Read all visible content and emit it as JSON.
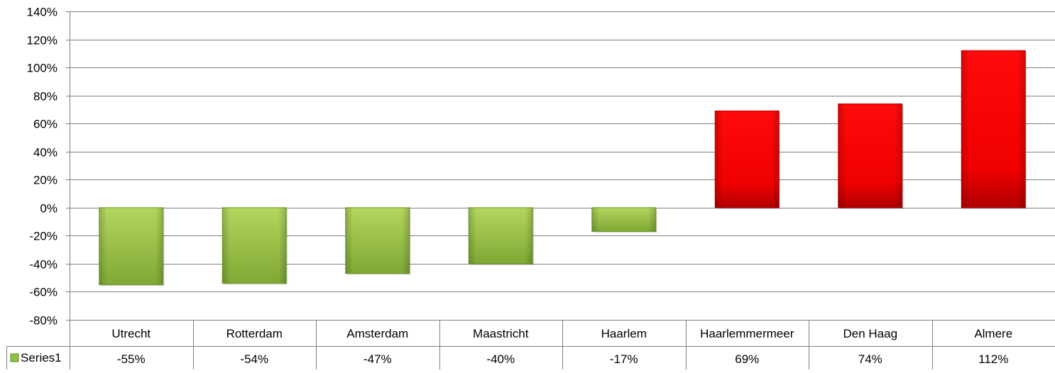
{
  "chart_data": {
    "type": "bar",
    "categories": [
      "Utrecht",
      "Rotterdam",
      "Amsterdam",
      "Maastricht",
      "Haarlem",
      "Haarlemmermeer",
      "Den Haag",
      "Almere"
    ],
    "series": [
      {
        "name": "Series1",
        "values": [
          -55,
          -54,
          -47,
          -40,
          -17,
          69,
          74,
          112
        ],
        "labels": [
          "-55%",
          "-54%",
          "-47%",
          "-40%",
          "-17%",
          "69%",
          "74%",
          "112%"
        ],
        "legend_color": "#92c244"
      }
    ],
    "ylim": [
      -80,
      140
    ],
    "yticks": [
      140,
      120,
      100,
      80,
      60,
      40,
      20,
      0,
      -20,
      -40,
      -60,
      -80
    ],
    "ytick_labels": [
      "140%",
      "120%",
      "100%",
      "80%",
      "60%",
      "40%",
      "20%",
      "0%",
      "-20%",
      "-40%",
      "-60%",
      "-80%"
    ],
    "grid": true,
    "data_table": true,
    "colors": {
      "negative": "#8cb83c",
      "positive": "#ff0000",
      "grid": "#7f7f7f"
    }
  }
}
